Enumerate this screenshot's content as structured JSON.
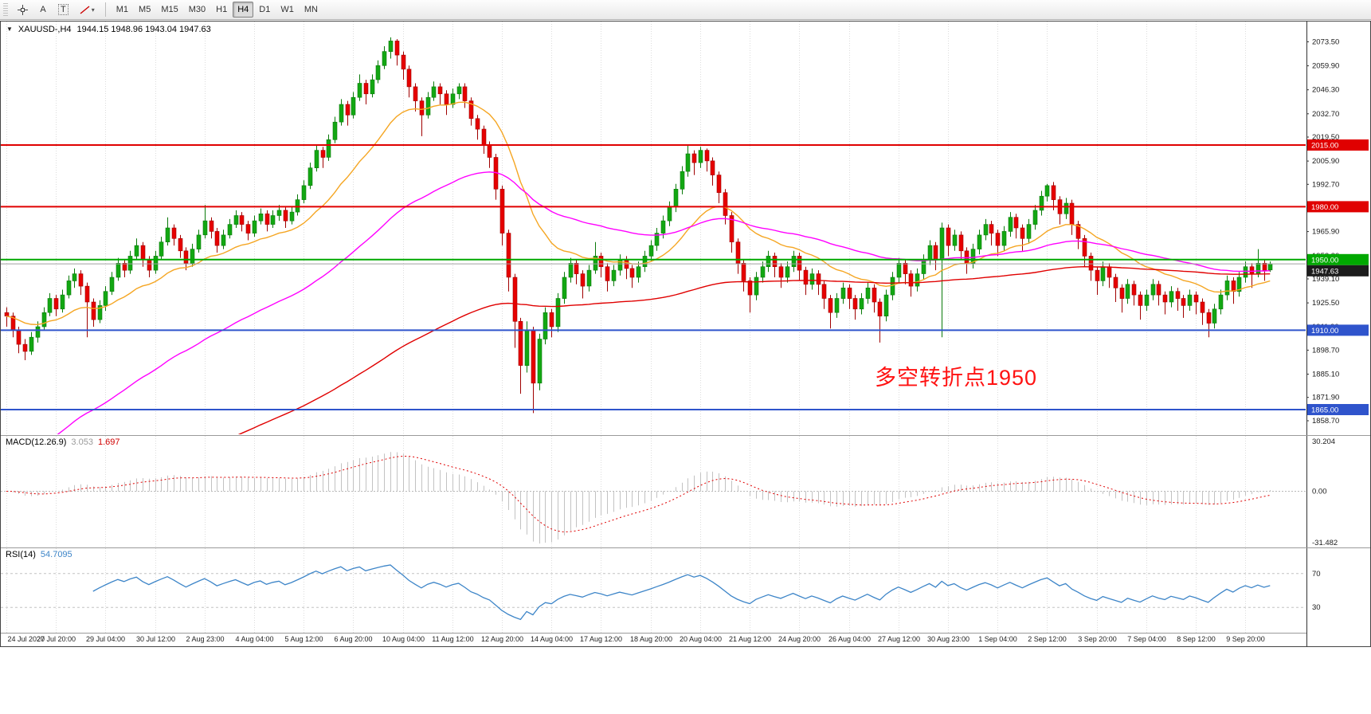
{
  "toolbar": {
    "tools": [
      {
        "name": "crosshair"
      },
      {
        "name": "text-label",
        "glyph": "A"
      },
      {
        "name": "text",
        "glyph": "T"
      },
      {
        "name": "objects-dropdown",
        "glyph": "▾"
      }
    ],
    "timeframes": [
      {
        "label": "M1",
        "active": false
      },
      {
        "label": "M5",
        "active": false
      },
      {
        "label": "M15",
        "active": false
      },
      {
        "label": "M30",
        "active": false
      },
      {
        "label": "H1",
        "active": false
      },
      {
        "label": "H4",
        "active": true
      },
      {
        "label": "D1",
        "active": false
      },
      {
        "label": "W1",
        "active": false
      },
      {
        "label": "MN",
        "active": false
      }
    ]
  },
  "chart_header": {
    "collapse_glyph": "▼",
    "symbol": "XAUUSD-,H4",
    "ohlc": "1944.15 1948.96 1943.04 1947.63"
  },
  "macd_header": {
    "name": "MACD(12.26.9)",
    "main_value": "3.053",
    "signal_value": "1.697"
  },
  "rsi_header": {
    "name": "RSI(14)",
    "value": "54.7095"
  },
  "annotation": {
    "text": "多空转折点1950",
    "color": "#ff1212"
  },
  "chart_data": {
    "type": "candlestick",
    "symbol": "XAUUSD-",
    "timeframe": "H4",
    "ohlc_display": {
      "open": "1944.15",
      "high": "1948.96",
      "low": "1943.04",
      "close": "1947.63"
    },
    "price_range": {
      "min": 1851,
      "max": 2085
    },
    "axis_labels": [
      "2073.50",
      "2059.90",
      "2046.30",
      "2032.70",
      "2019.50",
      "2005.90",
      "1992.70",
      "1979.10",
      "1965.90",
      "1952.30",
      "1939.10",
      "1925.50",
      "1911.90",
      "1898.70",
      "1885.10",
      "1871.90",
      "1858.70"
    ],
    "time_labels": [
      "24 Jul 2020",
      "27 Jul 20:00",
      "29 Jul 04:00",
      "30 Jul 12:00",
      "2 Aug 23:00",
      "4 Aug 04:00",
      "5 Aug 12:00",
      "6 Aug 20:00",
      "10 Aug 04:00",
      "11 Aug 12:00",
      "12 Aug 20:00",
      "14 Aug 04:00",
      "17 Aug 12:00",
      "18 Aug 20:00",
      "20 Aug 04:00",
      "21 Aug 12:00",
      "24 Aug 20:00",
      "26 Aug 04:00",
      "27 Aug 12:00",
      "30 Aug 23:00",
      "1 Sep 04:00",
      "2 Sep 12:00",
      "3 Sep 20:00",
      "7 Sep 04:00",
      "8 Sep 12:00",
      "9 Sep 20:00"
    ],
    "candles_per_tick": 8,
    "bull_color": "#12a712",
    "bull_stroke": "#0a7a0a",
    "bear_color": "#e60000",
    "bear_stroke": "#a00000",
    "grid_color": "#dcdcdc",
    "candles": [
      [
        1920,
        1923,
        1912,
        1918
      ],
      [
        1918,
        1920,
        1906,
        1910
      ],
      [
        1910,
        1912,
        1897,
        1902
      ],
      [
        1902,
        1905,
        1893,
        1898
      ],
      [
        1898,
        1909,
        1896,
        1906
      ],
      [
        1906,
        1915,
        1903,
        1912
      ],
      [
        1912,
        1923,
        1910,
        1920
      ],
      [
        1920,
        1931,
        1918,
        1928
      ],
      [
        1928,
        1930,
        1918,
        1922
      ],
      [
        1922,
        1933,
        1920,
        1930
      ],
      [
        1930,
        1941,
        1928,
        1938
      ],
      [
        1938,
        1945,
        1934,
        1942
      ],
      [
        1942,
        1944,
        1930,
        1935
      ],
      [
        1935,
        1937,
        1906,
        1926
      ],
      [
        1926,
        1928,
        1912,
        1916
      ],
      [
        1916,
        1927,
        1914,
        1924
      ],
      [
        1924,
        1935,
        1921,
        1932
      ],
      [
        1932,
        1943,
        1930,
        1940
      ],
      [
        1940,
        1951,
        1938,
        1948
      ],
      [
        1948,
        1950,
        1940,
        1944
      ],
      [
        1944,
        1955,
        1942,
        1952
      ],
      [
        1952,
        1962,
        1950,
        1958
      ],
      [
        1958,
        1960,
        1946,
        1950
      ],
      [
        1950,
        1952,
        1940,
        1944
      ],
      [
        1944,
        1955,
        1942,
        1952
      ],
      [
        1952,
        1963,
        1950,
        1960
      ],
      [
        1960,
        1974,
        1958,
        1968
      ],
      [
        1968,
        1970,
        1958,
        1962
      ],
      [
        1962,
        1964,
        1951,
        1955
      ],
      [
        1955,
        1957,
        1944,
        1948
      ],
      [
        1948,
        1959,
        1946,
        1956
      ],
      [
        1956,
        1967,
        1954,
        1964
      ],
      [
        1964,
        1981,
        1962,
        1972
      ],
      [
        1972,
        1974,
        1962,
        1966
      ],
      [
        1966,
        1968,
        1954,
        1958
      ],
      [
        1958,
        1967,
        1956,
        1964
      ],
      [
        1964,
        1973,
        1962,
        1970
      ],
      [
        1970,
        1978,
        1968,
        1975
      ],
      [
        1975,
        1977,
        1966,
        1970
      ],
      [
        1970,
        1972,
        1961,
        1965
      ],
      [
        1965,
        1975,
        1963,
        1972
      ],
      [
        1972,
        1979,
        1970,
        1976
      ],
      [
        1976,
        1978,
        1966,
        1970
      ],
      [
        1970,
        1978,
        1968,
        1975
      ],
      [
        1975,
        1981,
        1972,
        1978
      ],
      [
        1978,
        1980,
        1968,
        1972
      ],
      [
        1972,
        1980,
        1970,
        1977
      ],
      [
        1977,
        1987,
        1975,
        1984
      ],
      [
        1984,
        1995,
        1982,
        1992
      ],
      [
        1992,
        2005,
        1990,
        2002
      ],
      [
        2002,
        2015,
        2000,
        2012
      ],
      [
        2012,
        2014,
        2002,
        2008
      ],
      [
        2008,
        2021,
        2006,
        2018
      ],
      [
        2018,
        2031,
        2016,
        2028
      ],
      [
        2028,
        2041,
        2026,
        2038
      ],
      [
        2038,
        2040,
        2026,
        2032
      ],
      [
        2032,
        2045,
        2030,
        2042
      ],
      [
        2042,
        2055,
        2040,
        2050
      ],
      [
        2050,
        2052,
        2038,
        2044
      ],
      [
        2044,
        2055,
        2042,
        2052
      ],
      [
        2052,
        2063,
        2050,
        2060
      ],
      [
        2060,
        2071,
        2058,
        2068
      ],
      [
        2068,
        2076,
        2064,
        2074
      ],
      [
        2074,
        2075,
        2060,
        2066
      ],
      [
        2066,
        2068,
        2052,
        2058
      ],
      [
        2058,
        2060,
        2042,
        2048
      ],
      [
        2048,
        2050,
        2034,
        2040
      ],
      [
        2040,
        2042,
        2020,
        2032
      ],
      [
        2032,
        2045,
        2030,
        2042
      ],
      [
        2042,
        2051,
        2040,
        2048
      ],
      [
        2048,
        2050,
        2038,
        2044
      ],
      [
        2044,
        2046,
        2032,
        2038
      ],
      [
        2038,
        2047,
        2036,
        2044
      ],
      [
        2044,
        2050,
        2041,
        2048
      ],
      [
        2048,
        2050,
        2036,
        2040
      ],
      [
        2040,
        2042,
        2026,
        2030
      ],
      [
        2030,
        2032,
        2018,
        2024
      ],
      [
        2024,
        2026,
        2010,
        2015
      ],
      [
        2015,
        2017,
        2002,
        2008
      ],
      [
        2008,
        2010,
        1984,
        1990
      ],
      [
        1990,
        1992,
        1958,
        1965
      ],
      [
        1965,
        1967,
        1932,
        1940
      ],
      [
        1940,
        1942,
        1900,
        1915
      ],
      [
        1915,
        1917,
        1874,
        1890
      ],
      [
        1890,
        1915,
        1886,
        1910
      ],
      [
        1910,
        1912,
        1863,
        1880
      ],
      [
        1880,
        1908,
        1876,
        1905
      ],
      [
        1905,
        1923,
        1902,
        1920
      ],
      [
        1920,
        1922,
        1906,
        1912
      ],
      [
        1912,
        1931,
        1909,
        1928
      ],
      [
        1928,
        1943,
        1925,
        1940
      ],
      [
        1940,
        1951,
        1937,
        1948
      ],
      [
        1948,
        1950,
        1936,
        1942
      ],
      [
        1942,
        1944,
        1928,
        1935
      ],
      [
        1935,
        1947,
        1932,
        1944
      ],
      [
        1944,
        1960,
        1942,
        1952
      ],
      [
        1952,
        1954,
        1940,
        1946
      ],
      [
        1946,
        1948,
        1932,
        1938
      ],
      [
        1938,
        1947,
        1935,
        1944
      ],
      [
        1944,
        1953,
        1941,
        1950
      ],
      [
        1950,
        1952,
        1939,
        1945
      ],
      [
        1945,
        1947,
        1934,
        1940
      ],
      [
        1940,
        1949,
        1937,
        1946
      ],
      [
        1946,
        1955,
        1943,
        1952
      ],
      [
        1952,
        1961,
        1949,
        1958
      ],
      [
        1958,
        1968,
        1955,
        1965
      ],
      [
        1965,
        1975,
        1962,
        1972
      ],
      [
        1972,
        1983,
        1969,
        1980
      ],
      [
        1980,
        1993,
        1977,
        1990
      ],
      [
        1990,
        2003,
        1987,
        2000
      ],
      [
        2000,
        2015,
        1997,
        2010
      ],
      [
        2010,
        2012,
        1998,
        2005
      ],
      [
        2005,
        2014,
        2002,
        2012
      ],
      [
        2012,
        2013,
        2000,
        2006
      ],
      [
        2006,
        2008,
        1992,
        1998
      ],
      [
        1998,
        2000,
        1982,
        1988
      ],
      [
        1988,
        1990,
        1970,
        1975
      ],
      [
        1975,
        1977,
        1954,
        1960
      ],
      [
        1960,
        1962,
        1942,
        1948
      ],
      [
        1948,
        1950,
        1932,
        1938
      ],
      [
        1938,
        1940,
        1920,
        1930
      ],
      [
        1930,
        1943,
        1927,
        1940
      ],
      [
        1940,
        1949,
        1937,
        1946
      ],
      [
        1946,
        1955,
        1943,
        1952
      ],
      [
        1952,
        1954,
        1940,
        1946
      ],
      [
        1946,
        1948,
        1934,
        1940
      ],
      [
        1940,
        1949,
        1937,
        1946
      ],
      [
        1946,
        1955,
        1943,
        1952
      ],
      [
        1952,
        1954,
        1938,
        1944
      ],
      [
        1944,
        1946,
        1930,
        1936
      ],
      [
        1936,
        1945,
        1933,
        1942
      ],
      [
        1942,
        1944,
        1930,
        1936
      ],
      [
        1936,
        1938,
        1922,
        1928
      ],
      [
        1928,
        1930,
        1911,
        1920
      ],
      [
        1920,
        1931,
        1917,
        1928
      ],
      [
        1928,
        1937,
        1925,
        1934
      ],
      [
        1934,
        1936,
        1922,
        1928
      ],
      [
        1928,
        1930,
        1916,
        1922
      ],
      [
        1922,
        1931,
        1919,
        1928
      ],
      [
        1928,
        1937,
        1925,
        1934
      ],
      [
        1934,
        1936,
        1920,
        1926
      ],
      [
        1926,
        1928,
        1903,
        1918
      ],
      [
        1918,
        1933,
        1915,
        1930
      ],
      [
        1930,
        1943,
        1927,
        1940
      ],
      [
        1940,
        1951,
        1937,
        1948
      ],
      [
        1948,
        1950,
        1936,
        1942
      ],
      [
        1942,
        1944,
        1929,
        1935
      ],
      [
        1935,
        1945,
        1932,
        1942
      ],
      [
        1942,
        1953,
        1939,
        1950
      ],
      [
        1950,
        1961,
        1947,
        1958
      ],
      [
        1958,
        1960,
        1944,
        1950
      ],
      [
        1950,
        1971,
        1906,
        1968
      ],
      [
        1968,
        1970,
        1952,
        1958
      ],
      [
        1958,
        1967,
        1955,
        1964
      ],
      [
        1964,
        1966,
        1950,
        1955
      ],
      [
        1955,
        1957,
        1942,
        1948
      ],
      [
        1948,
        1959,
        1945,
        1956
      ],
      [
        1956,
        1967,
        1953,
        1964
      ],
      [
        1964,
        1973,
        1961,
        1970
      ],
      [
        1970,
        1972,
        1958,
        1965
      ],
      [
        1965,
        1967,
        1952,
        1958
      ],
      [
        1958,
        1969,
        1955,
        1966
      ],
      [
        1966,
        1977,
        1963,
        1974
      ],
      [
        1974,
        1976,
        1962,
        1968
      ],
      [
        1968,
        1970,
        1955,
        1962
      ],
      [
        1962,
        1973,
        1959,
        1970
      ],
      [
        1970,
        1981,
        1967,
        1978
      ],
      [
        1978,
        1989,
        1975,
        1986
      ],
      [
        1986,
        1993,
        1983,
        1992
      ],
      [
        1992,
        1994,
        1978,
        1984
      ],
      [
        1984,
        1986,
        1970,
        1976
      ],
      [
        1976,
        1985,
        1973,
        1982
      ],
      [
        1982,
        1984,
        1964,
        1970
      ],
      [
        1970,
        1972,
        1956,
        1962
      ],
      [
        1962,
        1964,
        1946,
        1952
      ],
      [
        1952,
        1954,
        1938,
        1944
      ],
      [
        1944,
        1946,
        1930,
        1938
      ],
      [
        1938,
        1949,
        1935,
        1946
      ],
      [
        1946,
        1948,
        1934,
        1940
      ],
      [
        1940,
        1942,
        1926,
        1934
      ],
      [
        1934,
        1936,
        1920,
        1928
      ],
      [
        1928,
        1939,
        1925,
        1936
      ],
      [
        1936,
        1938,
        1924,
        1930
      ],
      [
        1930,
        1932,
        1916,
        1924
      ],
      [
        1924,
        1933,
        1921,
        1930
      ],
      [
        1930,
        1939,
        1927,
        1936
      ],
      [
        1936,
        1938,
        1924,
        1930
      ],
      [
        1930,
        1932,
        1919,
        1926
      ],
      [
        1926,
        1935,
        1923,
        1932
      ],
      [
        1932,
        1934,
        1921,
        1928
      ],
      [
        1928,
        1930,
        1917,
        1924
      ],
      [
        1924,
        1933,
        1921,
        1930
      ],
      [
        1930,
        1932,
        1919,
        1926
      ],
      [
        1926,
        1928,
        1913,
        1920
      ],
      [
        1920,
        1922,
        1906,
        1914
      ],
      [
        1914,
        1925,
        1911,
        1922
      ],
      [
        1922,
        1933,
        1919,
        1930
      ],
      [
        1930,
        1941,
        1927,
        1938
      ],
      [
        1938,
        1940,
        1925,
        1932
      ],
      [
        1932,
        1943,
        1929,
        1940
      ],
      [
        1940,
        1949,
        1937,
        1946
      ],
      [
        1946,
        1948,
        1934,
        1942
      ],
      [
        1942,
        1956,
        1940,
        1948
      ],
      [
        1948,
        1950,
        1938,
        1944
      ],
      [
        1944.15,
        1948.96,
        1943.04,
        1947.63
      ]
    ],
    "moving_averages": [
      {
        "name": "ma-fast",
        "period": 20,
        "color": "#f5a623",
        "seed": null
      },
      {
        "name": "ma-mid",
        "period": 60,
        "color": "#ff00ff",
        "seed": 1828
      },
      {
        "name": "ma-slow",
        "period": 150,
        "color": "#e00000",
        "seed": 1788
      }
    ],
    "hlines": [
      {
        "price": 2015.0,
        "label": "2015.00",
        "color": "#e00000"
      },
      {
        "price": 1980.0,
        "label": "1980.00",
        "color": "#e00000"
      },
      {
        "price": 1950.0,
        "label": "1950.00",
        "color": "#00a800"
      },
      {
        "price": 1910.0,
        "label": "1910.00",
        "color": "#2f54cc"
      },
      {
        "price": 1865.0,
        "label": "1865.00",
        "color": "#2f54cc"
      }
    ],
    "bid_line": {
      "price": 1947.63,
      "label": "1947.63",
      "line_color": "#a0a0a0",
      "tag_bg": "#1c1c1c"
    },
    "macd": {
      "fast": 12,
      "slow": 26,
      "signal": 9,
      "hist_color": "#c2c2c2",
      "signal_color": "#e00000",
      "axis_max_label": "30.204",
      "axis_zero_label": "0.00",
      "axis_min_label": "-31.482"
    },
    "rsi": {
      "period": 14,
      "color": "#3d85c8",
      "levels": [
        70,
        30
      ],
      "level_labels": [
        "70",
        "30"
      ]
    }
  }
}
